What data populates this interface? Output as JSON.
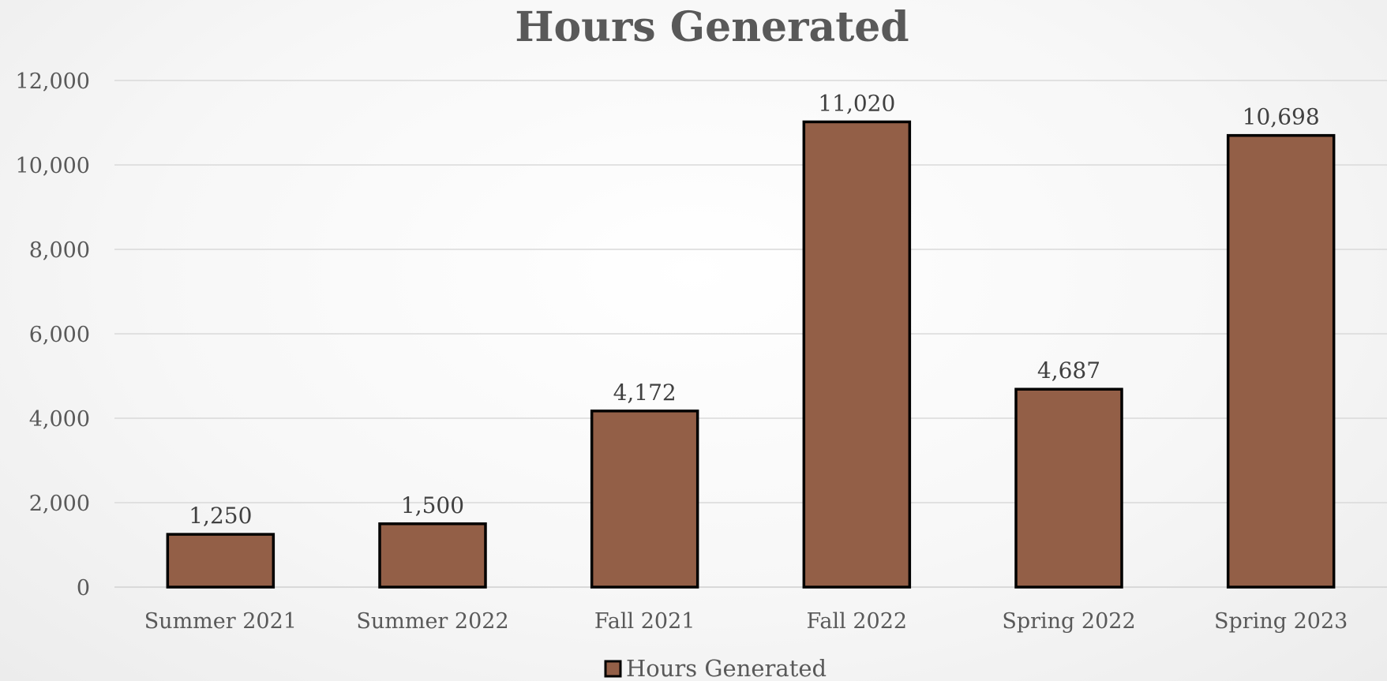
{
  "chart_data": {
    "type": "bar",
    "title": "Hours Generated",
    "xlabel": "",
    "ylabel": "",
    "categories": [
      "Summer 2021",
      "Summer 2022",
      "Fall 2021",
      "Fall 2022",
      "Spring 2022",
      "Spring 2023"
    ],
    "series": [
      {
        "name": "Hours Generated",
        "values": [
          1250,
          1500,
          4172,
          11020,
          4687,
          10698
        ],
        "data_labels": [
          "1,250",
          "1,500",
          "4,172",
          "11,020",
          "4,687",
          "10,698"
        ],
        "color": "#935f47",
        "edge_color": "#000000"
      }
    ],
    "ylim": [
      0,
      12000
    ],
    "yticks": [
      0,
      2000,
      4000,
      6000,
      8000,
      10000,
      12000
    ],
    "ytick_labels": [
      "0",
      "2,000",
      "4,000",
      "6,000",
      "8,000",
      "10,000",
      "12,000"
    ],
    "grid": true,
    "legend": {
      "position": "bottom",
      "entries": [
        "Hours Generated"
      ]
    }
  }
}
